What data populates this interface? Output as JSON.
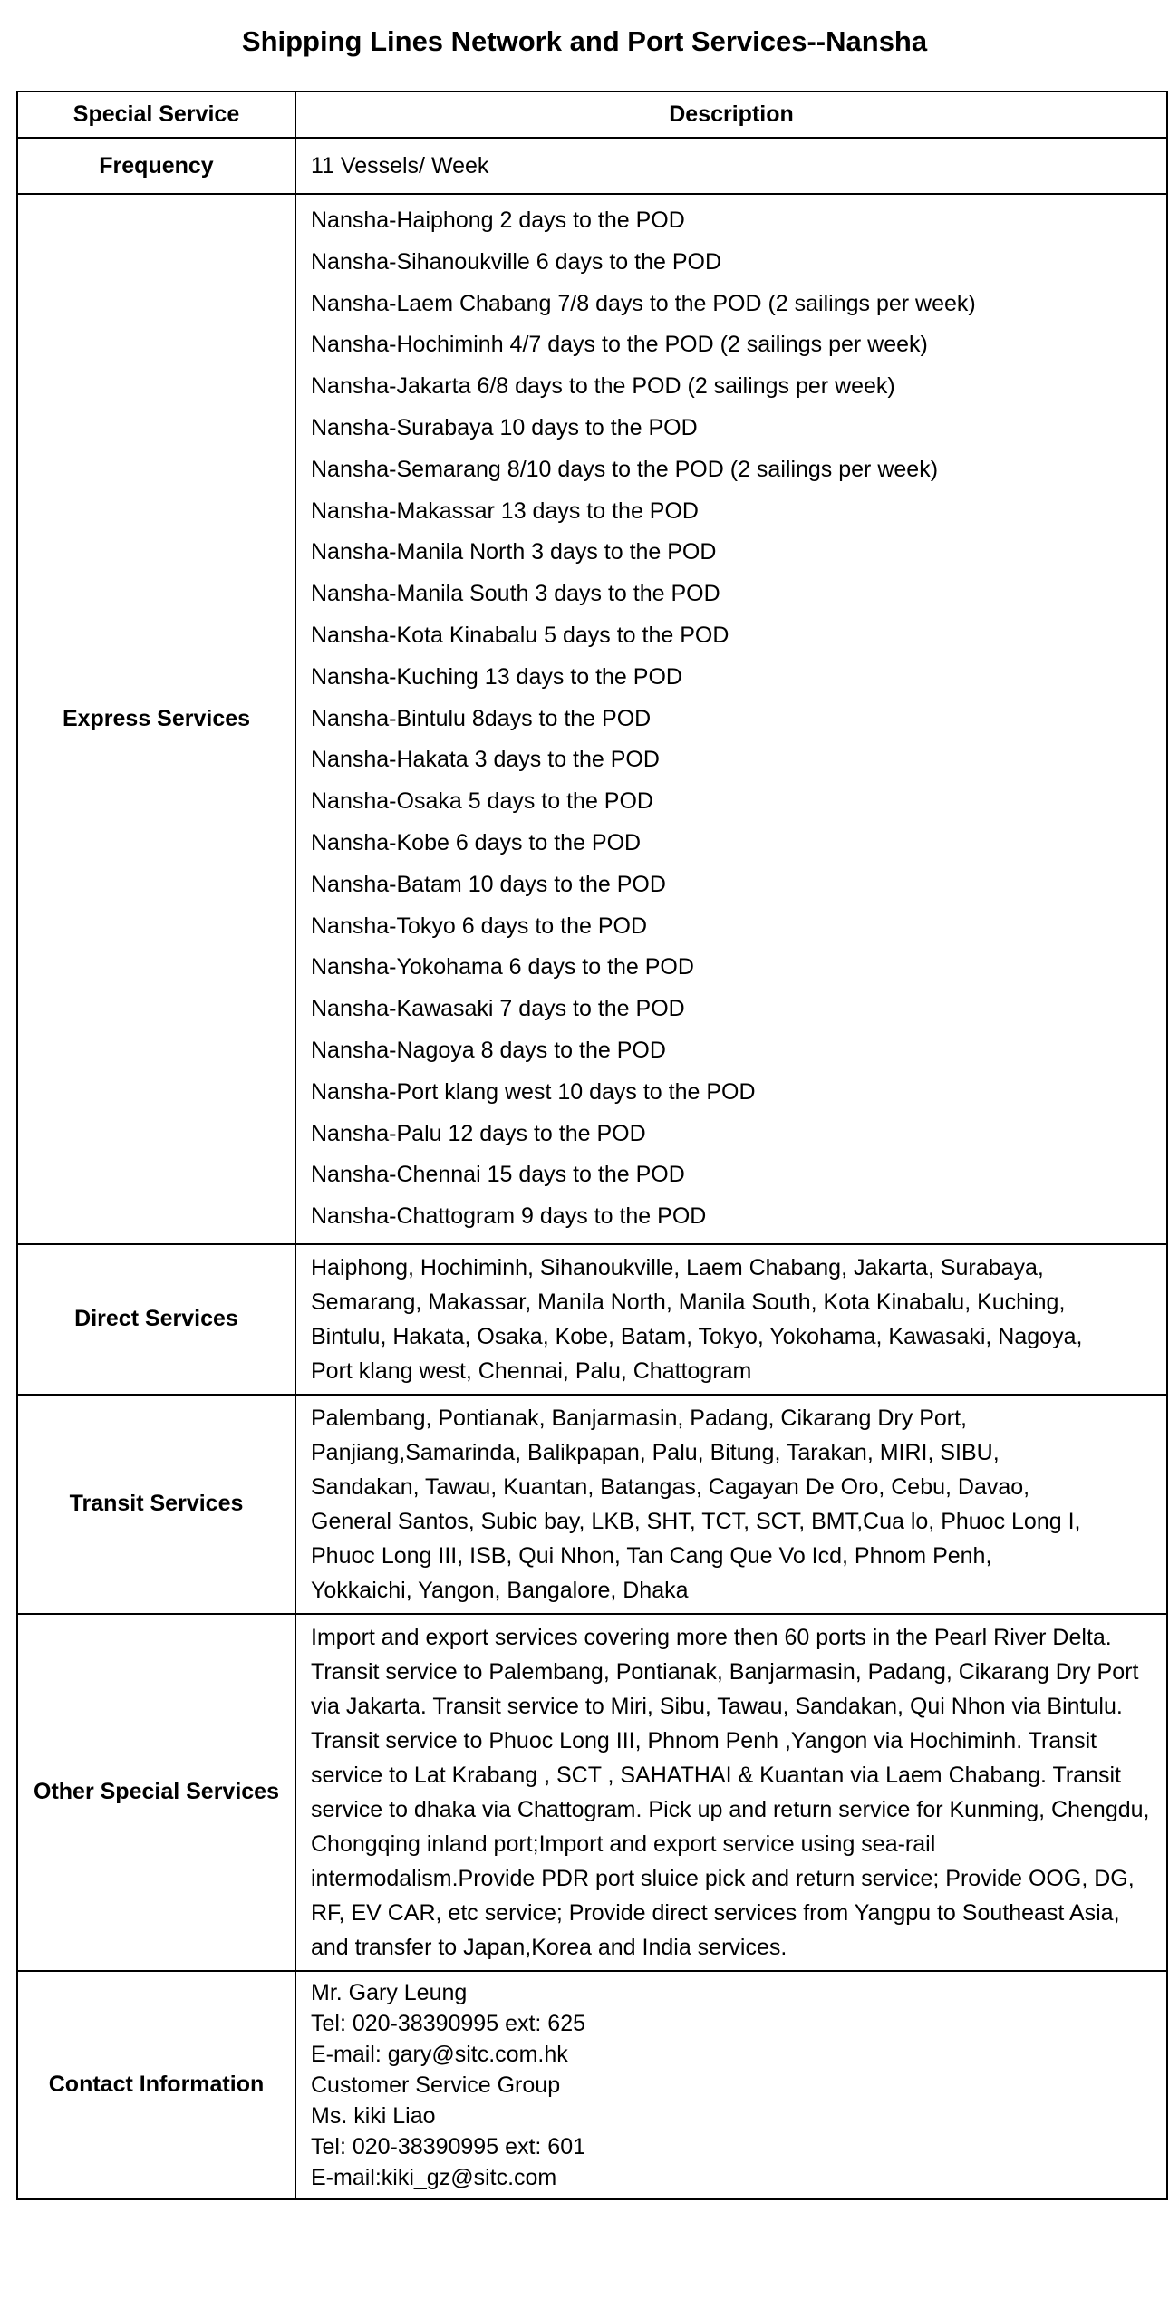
{
  "title": "Shipping Lines Network and Port Services--Nansha",
  "table": {
    "headers": [
      "Special Service",
      "Description"
    ],
    "frequency": {
      "label": "Frequency",
      "value": "11 Vessels/ Week"
    },
    "express": {
      "label": "Express Services",
      "lines": [
        "Nansha-Haiphong 2 days to the POD",
        "Nansha-Sihanoukville 6 days to the POD",
        "Nansha-Laem Chabang 7/8 days to the POD (2 sailings per week)",
        "Nansha-Hochiminh 4/7 days to the POD (2 sailings per week)",
        "Nansha-Jakarta 6/8 days to the POD (2 sailings per week)",
        "Nansha-Surabaya 10 days to the POD",
        "Nansha-Semarang 8/10 days to the POD (2 sailings per week)",
        "Nansha-Makassar 13 days to the POD",
        "Nansha-Manila North 3 days to the POD",
        "Nansha-Manila South 3 days to the POD",
        "Nansha-Kota Kinabalu 5 days to the POD",
        "Nansha-Kuching 13 days to the POD",
        "Nansha-Bintulu 8days to the POD",
        "Nansha-Hakata 3 days to the POD",
        "Nansha-Osaka 5 days to the POD",
        "Nansha-Kobe 6 days to the POD",
        "Nansha-Batam 10 days to the POD",
        "Nansha-Tokyo 6 days to the POD",
        "Nansha-Yokohama 6 days to the POD",
        "Nansha-Kawasaki 7 days to the POD",
        "Nansha-Nagoya 8 days to the POD",
        "Nansha-Port klang west 10 days to the POD",
        "Nansha-Palu 12 days to the POD",
        "Nansha-Chennai 15 days to the POD",
        "Nansha-Chattogram 9 days to the POD"
      ]
    },
    "direct": {
      "label": "Direct Services",
      "lines": [
        "Haiphong, Hochiminh, Sihanoukville, Laem Chabang, Jakarta, Surabaya,",
        "Semarang, Makassar, Manila North, Manila South, Kota Kinabalu, Kuching,",
        "Bintulu, Hakata, Osaka, Kobe, Batam, Tokyo, Yokohama, Kawasaki, Nagoya,",
        "Port klang west, Chennai, Palu, Chattogram"
      ]
    },
    "transit": {
      "label": "Transit Services",
      "lines": [
        "Palembang, Pontianak, Banjarmasin, Padang, Cikarang Dry Port,",
        "Panjiang,Samarinda, Balikpapan, Palu, Bitung, Tarakan, MIRI, SIBU,",
        "Sandakan, Tawau, Kuantan, Batangas, Cagayan De Oro, Cebu, Davao,",
        "General Santos, Subic bay, LKB, SHT, TCT, SCT, BMT,Cua lo, Phuoc Long I,",
        "Phuoc Long III, ISB, Qui Nhon, Tan Cang Que Vo Icd, Phnom Penh,",
        "Yokkaichi, Yangon, Bangalore, Dhaka"
      ]
    },
    "other": {
      "label": "Other Special Services",
      "paragraphs": [
        "Import and export services covering more then 60 ports in the Pearl River Delta.",
        "Transit service to Palembang, Pontianak, Banjarmasin, Padang, Cikarang Dry Port via Jakarta. Transit service to Miri, Sibu, Tawau, Sandakan, Qui Nhon via Bintulu. Transit service to Phuoc Long III, Phnom Penh ,Yangon via Hochiminh. Transit service to Lat Krabang , SCT , SAHATHAI & Kuantan via Laem Chabang. Transit service to dhaka via Chattogram. Pick up and return service for Kunming, Chengdu, Chongqing inland port;Import and export service using sea-rail intermodalism.Provide PDR port sluice pick and return service; Provide OOG, DG, RF, EV CAR, etc service; Provide direct services from Yangpu to Southeast Asia, and transfer to Japan,Korea and India services."
      ]
    },
    "contact": {
      "label": "Contact Information",
      "lines": [
        "Mr. Gary Leung",
        "Tel: 020-38390995 ext: 625",
        "E-mail: gary@sitc.com.hk",
        "Customer Service Group",
        "Ms. kiki Liao",
        "Tel: 020-38390995 ext: 601",
        "E-mail:kiki_gz@sitc.com"
      ]
    }
  }
}
